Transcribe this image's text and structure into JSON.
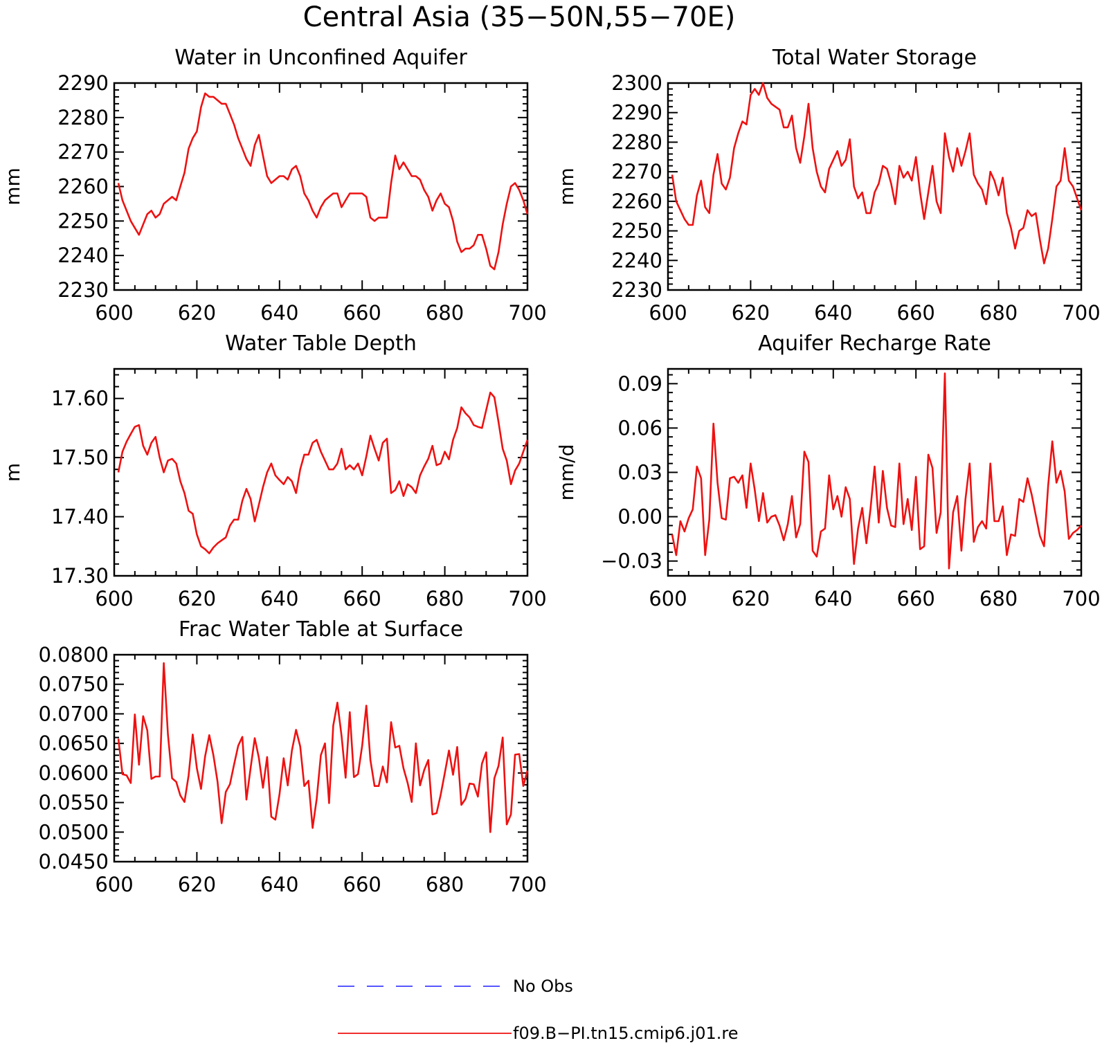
{
  "figure": {
    "title": "Central Asia (35−50N,55−70E)",
    "legend": [
      {
        "label": "No Obs",
        "color": "#1f1fff",
        "style": "dashed"
      },
      {
        "label": "f09.B−PI.tn15.cmip6.j01.re",
        "color": "#ee1111",
        "style": "solid"
      }
    ]
  },
  "chart_data": [
    {
      "type": "line",
      "title": "Water in Unconfined Aquifer",
      "ylabel": "mm",
      "xlim": [
        600,
        700
      ],
      "ylim": [
        2230,
        2290
      ],
      "xticks": [
        600,
        620,
        640,
        660,
        680,
        700
      ],
      "xtick_labels": [
        "600",
        "620",
        "640",
        "660",
        "680",
        "700"
      ],
      "yticks": [
        2230,
        2240,
        2250,
        2260,
        2270,
        2280,
        2290
      ],
      "ytick_labels": [
        "2230",
        "2240",
        "2250",
        "2260",
        "2270",
        "2280",
        "2290"
      ],
      "grid": false,
      "x_start": 601,
      "series": [
        {
          "color": "#ee1111",
          "values": [
            2261,
            2256,
            2253,
            2250,
            2248,
            2246,
            2249,
            2252,
            2253,
            2251,
            2252,
            2255,
            2256,
            2257,
            2256,
            2260,
            2264,
            2271,
            2274,
            2276,
            2283,
            2287,
            2286,
            2286,
            2285,
            2284,
            2284,
            2281,
            2278,
            2274,
            2271,
            2268,
            2266,
            2272,
            2275,
            2269,
            2263,
            2261,
            2262,
            2263,
            2263,
            2262,
            2265,
            2266,
            2263,
            2258,
            2256,
            2253,
            2251,
            2254,
            2256,
            2257,
            2258,
            2258,
            2254,
            2256,
            2258,
            2258,
            2258,
            2258,
            2257,
            2251,
            2250,
            2251,
            2251,
            2251,
            2261,
            2269,
            2265,
            2267,
            2265,
            2263,
            2263,
            2262,
            2259,
            2257,
            2253,
            2256,
            2258,
            2255,
            2254,
            2250,
            2244,
            2241,
            2242,
            2242,
            2243,
            2246,
            2246,
            2242,
            2237,
            2236,
            2241,
            2249,
            2255,
            2260,
            2261,
            2259,
            2256,
            2252
          ]
        }
      ]
    },
    {
      "type": "line",
      "title": "Total Water Storage",
      "ylabel": "mm",
      "xlim": [
        600,
        700
      ],
      "ylim": [
        2230,
        2300
      ],
      "xticks": [
        600,
        620,
        640,
        660,
        680,
        700
      ],
      "xtick_labels": [
        "600",
        "620",
        "640",
        "660",
        "680",
        "700"
      ],
      "yticks": [
        2230,
        2240,
        2250,
        2260,
        2270,
        2280,
        2290,
        2300
      ],
      "ytick_labels": [
        "2230",
        "2240",
        "2250",
        "2260",
        "2270",
        "2280",
        "2290",
        "2300"
      ],
      "grid": false,
      "x_start": 601,
      "series": [
        {
          "color": "#ee1111",
          "values": [
            2269,
            2260,
            2257,
            2254,
            2252,
            2252,
            2262,
            2267,
            2258,
            2256,
            2269,
            2276,
            2266,
            2264,
            2268,
            2278,
            2283,
            2287,
            2286,
            2296,
            2298,
            2296,
            2300,
            2295,
            2293,
            2292,
            2291,
            2285,
            2285,
            2289,
            2278,
            2273,
            2282,
            2293,
            2278,
            2270,
            2265,
            2263,
            2271,
            2274,
            2277,
            2272,
            2274,
            2281,
            2265,
            2261,
            2263,
            2256,
            2256,
            2263,
            2266,
            2272,
            2271,
            2266,
            2259,
            2272,
            2268,
            2270,
            2267,
            2275,
            2263,
            2254,
            2263,
            2272,
            2260,
            2256,
            2283,
            2275,
            2270,
            2278,
            2272,
            2277,
            2283,
            2269,
            2266,
            2264,
            2259,
            2270,
            2267,
            2262,
            2268,
            2256,
            2251,
            2244,
            2250,
            2251,
            2257,
            2255,
            2256,
            2247,
            2239,
            2244,
            2254,
            2265,
            2267,
            2278,
            2267,
            2265,
            2261,
            2257
          ]
        }
      ]
    },
    {
      "type": "line",
      "title": "Water Table Depth",
      "ylabel": "m",
      "xlim": [
        600,
        700
      ],
      "ylim": [
        17.3,
        17.65
      ],
      "xticks": [
        600,
        620,
        640,
        660,
        680,
        700
      ],
      "xtick_labels": [
        "600",
        "620",
        "640",
        "660",
        "680",
        "700"
      ],
      "yticks": [
        17.3,
        17.4,
        17.5,
        17.6
      ],
      "ytick_labels": [
        "17.30",
        "17.40",
        "17.50",
        "17.60"
      ],
      "grid": false,
      "x_start": 601,
      "series": [
        {
          "color": "#ee1111",
          "values": [
            17.475,
            17.51,
            17.527,
            17.54,
            17.552,
            17.555,
            17.52,
            17.505,
            17.525,
            17.535,
            17.5,
            17.475,
            17.495,
            17.498,
            17.49,
            17.46,
            17.44,
            17.41,
            17.405,
            17.37,
            17.35,
            17.345,
            17.338,
            17.348,
            17.355,
            17.36,
            17.365,
            17.385,
            17.395,
            17.395,
            17.427,
            17.447,
            17.43,
            17.392,
            17.42,
            17.45,
            17.475,
            17.49,
            17.47,
            17.462,
            17.455,
            17.467,
            17.46,
            17.44,
            17.48,
            17.505,
            17.505,
            17.525,
            17.53,
            17.51,
            17.495,
            17.48,
            17.48,
            17.49,
            17.515,
            17.48,
            17.487,
            17.48,
            17.49,
            17.47,
            17.502,
            17.537,
            17.515,
            17.495,
            17.525,
            17.532,
            17.44,
            17.445,
            17.46,
            17.435,
            17.455,
            17.45,
            17.44,
            17.47,
            17.485,
            17.498,
            17.52,
            17.487,
            17.49,
            17.51,
            17.497,
            17.53,
            17.55,
            17.585,
            17.575,
            17.568,
            17.555,
            17.552,
            17.55,
            17.58,
            17.61,
            17.602,
            17.56,
            17.515,
            17.495,
            17.455,
            17.478,
            17.49,
            17.51,
            17.53
          ]
        }
      ]
    },
    {
      "type": "line",
      "title": "Aquifer Recharge Rate",
      "ylabel": "mm/d",
      "xlim": [
        600,
        700
      ],
      "ylim": [
        -0.04,
        0.1
      ],
      "xticks": [
        600,
        620,
        640,
        660,
        680,
        700
      ],
      "xtick_labels": [
        "600",
        "620",
        "640",
        "660",
        "680",
        "700"
      ],
      "yticks": [
        -0.03,
        0.0,
        0.03,
        0.06,
        0.09
      ],
      "ytick_labels": [
        "−0.03",
        "0.00",
        "0.03",
        "0.06",
        "0.09"
      ],
      "grid": false,
      "x_start": 601,
      "series": [
        {
          "color": "#ee1111",
          "values": [
            -0.012,
            -0.026,
            -0.003,
            -0.01,
            -0.001,
            0.005,
            0.034,
            0.026,
            -0.026,
            -0.002,
            0.063,
            0.023,
            -0.001,
            -0.002,
            0.026,
            0.027,
            0.023,
            0.028,
            0.006,
            0.036,
            0.018,
            -0.003,
            0.016,
            -0.004,
            0.0,
            0.001,
            -0.006,
            -0.016,
            -0.005,
            0.014,
            -0.014,
            -0.005,
            0.044,
            0.037,
            -0.023,
            -0.027,
            -0.01,
            -0.008,
            0.028,
            0.005,
            0.014,
            0.0,
            0.02,
            0.012,
            -0.032,
            -0.008,
            0.006,
            -0.018,
            0.005,
            0.034,
            -0.004,
            0.031,
            0.006,
            -0.006,
            -0.007,
            0.036,
            -0.005,
            0.012,
            -0.009,
            0.027,
            -0.022,
            -0.02,
            0.042,
            0.033,
            -0.011,
            0.003,
            0.097,
            -0.035,
            0.003,
            0.014,
            -0.023,
            0.012,
            0.036,
            -0.017,
            -0.007,
            -0.003,
            -0.008,
            0.036,
            -0.003,
            -0.003,
            0.007,
            -0.026,
            -0.012,
            -0.013,
            0.012,
            0.01,
            0.026,
            0.015,
            0.001,
            -0.013,
            -0.02,
            0.021,
            0.051,
            0.023,
            0.031,
            0.017,
            -0.015,
            -0.011,
            -0.009,
            -0.006
          ]
        }
      ]
    },
    {
      "type": "line",
      "title": "Frac Water Table at Surface",
      "ylabel": "",
      "xlim": [
        600,
        700
      ],
      "ylim": [
        0.045,
        0.08
      ],
      "xticks": [
        600,
        620,
        640,
        660,
        680,
        700
      ],
      "xtick_labels": [
        "600",
        "620",
        "640",
        "660",
        "680",
        "700"
      ],
      "yticks": [
        0.045,
        0.05,
        0.055,
        0.06,
        0.065,
        0.07,
        0.075,
        0.08
      ],
      "ytick_labels": [
        "0.0450",
        "0.0500",
        "0.0550",
        "0.0600",
        "0.0650",
        "0.0700",
        "0.0750",
        "0.0800"
      ],
      "grid": false,
      "x_start": 601,
      "series": [
        {
          "color": "#ee1111",
          "values": [
            0.0658,
            0.0598,
            0.0596,
            0.0583,
            0.0699,
            0.0614,
            0.0696,
            0.0672,
            0.059,
            0.0594,
            0.0594,
            0.0786,
            0.0665,
            0.0591,
            0.0585,
            0.0562,
            0.0551,
            0.0596,
            0.0665,
            0.0608,
            0.0573,
            0.0628,
            0.0664,
            0.063,
            0.0585,
            0.0515,
            0.0568,
            0.0581,
            0.0614,
            0.0646,
            0.0661,
            0.0555,
            0.0608,
            0.0659,
            0.0626,
            0.0575,
            0.0627,
            0.0526,
            0.0521,
            0.0564,
            0.0625,
            0.0579,
            0.0638,
            0.0673,
            0.0645,
            0.0578,
            0.0587,
            0.0507,
            0.0556,
            0.063,
            0.065,
            0.0549,
            0.068,
            0.0719,
            0.0663,
            0.0592,
            0.0703,
            0.0593,
            0.0598,
            0.0646,
            0.0714,
            0.0622,
            0.0578,
            0.0578,
            0.0611,
            0.0584,
            0.0686,
            0.0643,
            0.0646,
            0.0608,
            0.0583,
            0.0551,
            0.065,
            0.0579,
            0.0605,
            0.0622,
            0.053,
            0.0532,
            0.0563,
            0.06,
            0.0638,
            0.0597,
            0.0644,
            0.0546,
            0.0556,
            0.0582,
            0.0581,
            0.056,
            0.0616,
            0.0635,
            0.05,
            0.0591,
            0.0612,
            0.066,
            0.0513,
            0.053,
            0.0631,
            0.0632,
            0.0578,
            0.0604
          ]
        }
      ]
    }
  ]
}
